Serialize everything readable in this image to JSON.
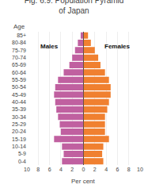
{
  "chart_data": {
    "type": "pyramid",
    "orientation": "horizontal",
    "title": [
      "Fig. 6.9: Population Pyramid",
      "of Japan"
    ],
    "xlabel": "Per cent",
    "ylabel": "Age",
    "categories": [
      "0-4",
      "5-9",
      "10-14",
      "15-19",
      "20-24",
      "25-29",
      "30-34",
      "35-39",
      "40-44",
      "45-49",
      "50-54",
      "55-59",
      "60-64",
      "65-69",
      "70-74",
      "75-79",
      "80-84",
      "85+"
    ],
    "series": [
      {
        "name": "Males",
        "color": "#c060a0",
        "values": [
          3.8,
          3.5,
          3.8,
          5.2,
          4.0,
          4.2,
          4.5,
          4.8,
          5.0,
          5.2,
          5.0,
          4.5,
          3.5,
          2.5,
          2.0,
          1.5,
          1.0,
          0.5
        ]
      },
      {
        "name": "Females",
        "color": "#f08030",
        "values": [
          3.5,
          3.3,
          3.5,
          4.5,
          3.8,
          3.8,
          3.8,
          4.2,
          4.5,
          4.8,
          4.8,
          4.5,
          3.8,
          3.0,
          2.6,
          2.0,
          1.3,
          0.8
        ]
      }
    ],
    "xlim": [
      0,
      10
    ],
    "xticks": [
      0,
      2,
      4,
      6,
      8,
      10
    ],
    "grid": true
  }
}
